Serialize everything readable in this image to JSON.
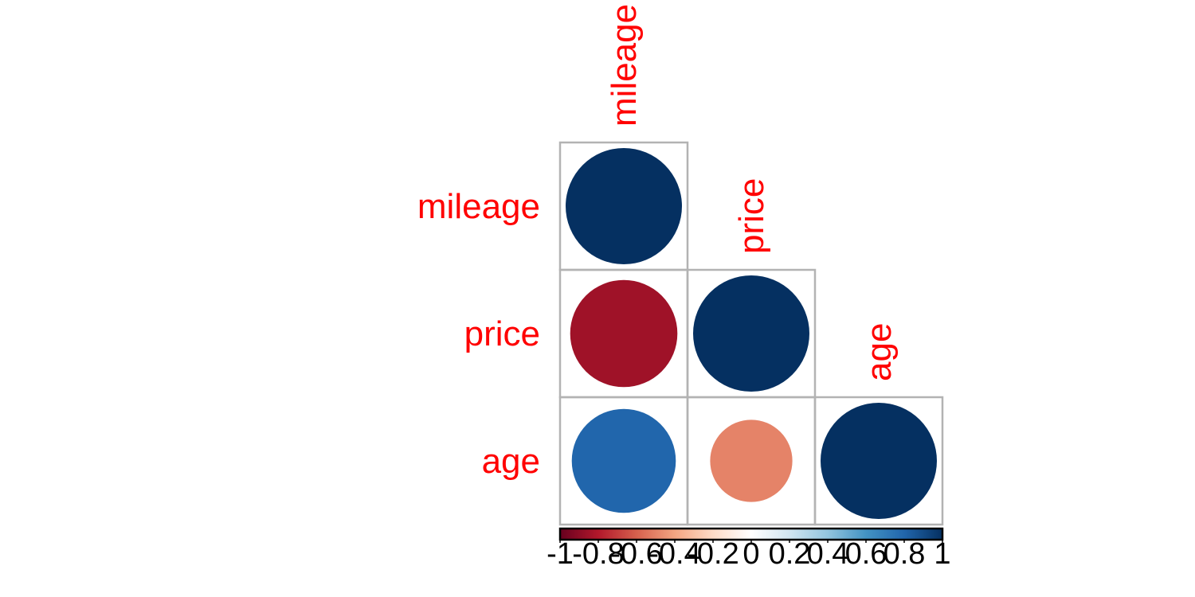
{
  "chart_data": {
    "type": "heatmap",
    "subtype": "correlation-circles-lower-triangle",
    "variables": [
      "mileage",
      "price",
      "age"
    ],
    "matrix": [
      [
        1.0,
        -0.85,
        0.8
      ],
      [
        -0.85,
        1.0,
        -0.5
      ],
      [
        0.8,
        -0.5,
        1.0
      ]
    ],
    "colorbar": {
      "range": [
        -1,
        1
      ],
      "ticks": [
        "-1",
        "-0.8",
        "-0.6",
        "-0.4",
        "-0.2",
        "0",
        "0.2",
        "0.4",
        "0.6",
        "0.8",
        "1"
      ],
      "placement": "bottom"
    },
    "colors": {
      "label": "#ff0000",
      "grid": "#b3b3b3",
      "scale": [
        "#67001f",
        "#b2182b",
        "#d6604d",
        "#f4a582",
        "#fddbc7",
        "#ffffff",
        "#d1e5f0",
        "#92c5de",
        "#4393c3",
        "#2166ac",
        "#053061"
      ]
    },
    "grid": true,
    "legend": "bottom"
  }
}
